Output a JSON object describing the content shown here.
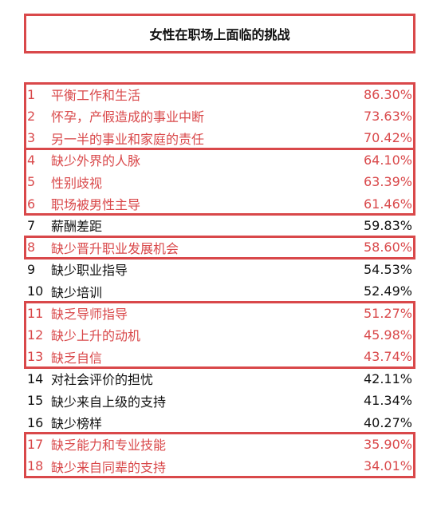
{
  "title": "女性在职场上面临的挑战",
  "colors": {
    "accent": "#d9484a",
    "text": "#111111"
  },
  "chart_data": {
    "type": "table",
    "title": "女性在职场上面临的挑战",
    "rows": [
      {
        "rank": "1",
        "label": "平衡工作和生活",
        "value": "86.30%",
        "highlight": true
      },
      {
        "rank": "2",
        "label": "怀孕，产假造成的事业中断",
        "value": "73.63%",
        "highlight": true
      },
      {
        "rank": "3",
        "label": "另一半的事业和家庭的责任",
        "value": "70.42%",
        "highlight": true
      },
      {
        "rank": "4",
        "label": "缺少外界的人脉",
        "value": "64.10%",
        "highlight": true
      },
      {
        "rank": "5",
        "label": "性别歧视",
        "value": "63.39%",
        "highlight": true
      },
      {
        "rank": "6",
        "label": "职场被男性主导",
        "value": "61.46%",
        "highlight": true
      },
      {
        "rank": "7",
        "label": "薪酬差距",
        "value": "59.83%",
        "highlight": false
      },
      {
        "rank": "8",
        "label": "缺少晋升职业发展机会",
        "value": "58.60%",
        "highlight": true
      },
      {
        "rank": "9",
        "label": "缺少职业指导",
        "value": "54.53%",
        "highlight": false
      },
      {
        "rank": "10",
        "label": "缺少培训",
        "value": "52.49%",
        "highlight": false
      },
      {
        "rank": "11",
        "label": "缺乏导师指导",
        "value": "51.27%",
        "highlight": true
      },
      {
        "rank": "12",
        "label": "缺少上升的动机",
        "value": "45.98%",
        "highlight": true
      },
      {
        "rank": "13",
        "label": "缺乏自信",
        "value": "43.74%",
        "highlight": true
      },
      {
        "rank": "14",
        "label": "对社会评价的担忧",
        "value": "42.11%",
        "highlight": false
      },
      {
        "rank": "15",
        "label": "缺少来自上级的支持",
        "value": "41.34%",
        "highlight": false
      },
      {
        "rank": "16",
        "label": "缺少榜样",
        "value": "40.27%",
        "highlight": false
      },
      {
        "rank": "17",
        "label": "缺乏能力和专业技能",
        "value": "35.90%",
        "highlight": true
      },
      {
        "rank": "18",
        "label": "缺少来自同辈的支持",
        "value": "34.01%",
        "highlight": true
      }
    ],
    "groups": [
      [
        1,
        3
      ],
      [
        4,
        6
      ],
      [
        8,
        8
      ],
      [
        11,
        13
      ],
      [
        17,
        18
      ]
    ]
  }
}
